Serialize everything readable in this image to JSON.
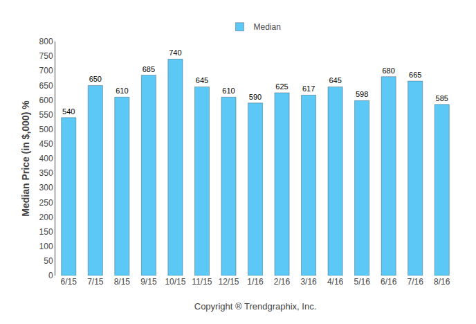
{
  "chart_data": {
    "type": "bar",
    "xlabel": "Copyright ® Trendgraphix, Inc.",
    "ylabel": "Median Price (in $,000) %",
    "categories": [
      "6/15",
      "7/15",
      "8/15",
      "9/15",
      "10/15",
      "11/15",
      "12/15",
      "1/16",
      "2/16",
      "3/16",
      "4/16",
      "5/16",
      "6/16",
      "7/16",
      "8/16"
    ],
    "series": [
      {
        "name": "Median",
        "color": "#5BC8F5",
        "values": [
          540,
          650,
          610,
          685,
          740,
          645,
          610,
          590,
          625,
          617,
          645,
          598,
          680,
          665,
          585
        ]
      }
    ],
    "ylim": [
      0,
      800
    ],
    "yticks": [
      0,
      50,
      100,
      150,
      200,
      250,
      300,
      350,
      400,
      450,
      500,
      550,
      600,
      650,
      700,
      750,
      800
    ],
    "grid": false,
    "legend": "top",
    "data_labels": true
  }
}
